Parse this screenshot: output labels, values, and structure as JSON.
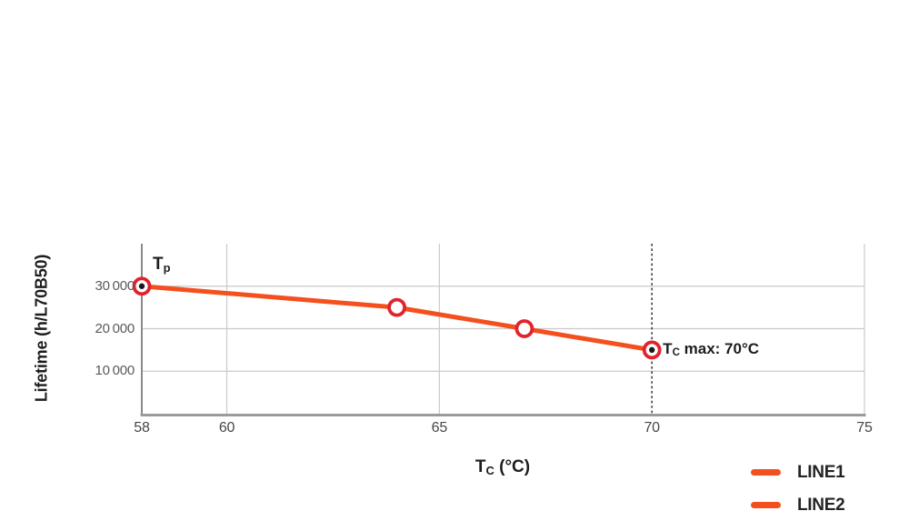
{
  "chart_data": {
    "type": "line",
    "title": "",
    "xlabel": {
      "main": "T",
      "sub": "C",
      "rest": " (°C)"
    },
    "ylabel": "Lifetime (h/L70B50)",
    "xlim": [
      58,
      75
    ],
    "ylim": [
      0,
      40000
    ],
    "x_ticks": [
      {
        "value": 58,
        "label": "58"
      },
      {
        "value": 60,
        "label": "60"
      },
      {
        "value": 65,
        "label": "65"
      },
      {
        "value": 70,
        "label": "70"
      },
      {
        "value": 75,
        "label": "75"
      }
    ],
    "y_ticks": [
      {
        "value": 30000,
        "label": "30 000"
      },
      {
        "value": 20000,
        "label": "20 000"
      },
      {
        "value": 10000,
        "label": "10 000"
      }
    ],
    "grid": {
      "vertical_at": [
        60,
        65,
        75
      ],
      "horizontal_at": [
        10000,
        20000,
        30000
      ]
    },
    "series": [
      {
        "name": "LINE1",
        "color": "#f3501e",
        "points": [
          {
            "x": 58,
            "y": 30000,
            "dot": true
          },
          {
            "x": 64,
            "y": 25000,
            "dot": false
          },
          {
            "x": 67,
            "y": 20000,
            "dot": false
          },
          {
            "x": 70,
            "y": 15000,
            "dot": true
          }
        ]
      }
    ],
    "marker": {
      "ring_color": "#e1232d",
      "fill": "#ffffff",
      "dot_color": "#1a1a1a"
    },
    "annotations": {
      "tp": {
        "main": "T",
        "sub": "p",
        "rest": "",
        "x": 58,
        "y": 30000
      },
      "tc_max": {
        "main": "T",
        "sub": "C",
        "rest": " max: 70°C",
        "x": 70,
        "y": 15000
      },
      "vline": {
        "x": 70,
        "style": "dashed",
        "color": "#3d3d3d"
      }
    },
    "legend": {
      "position": "bottom-right",
      "entries": [
        {
          "label": "LINE1",
          "color": "#f3501e"
        },
        {
          "label": "LINE2",
          "color": "#f3501e"
        }
      ]
    },
    "colors": {
      "grid": "#cacaca",
      "axis_y": "#8a8a8a",
      "axis_x": "#9b9b9b"
    }
  }
}
